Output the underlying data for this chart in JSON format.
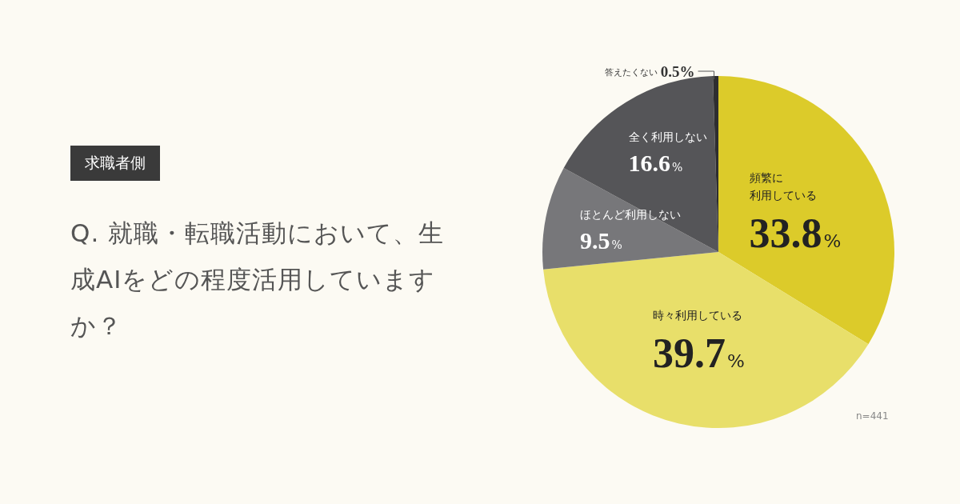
{
  "chart_data": {
    "type": "pie",
    "subtitle": "求職者側",
    "title": "Q. 就職・転職活動において、生成AIをどの程度活用していますか？",
    "categories": [
      "頻繁に利用している",
      "時々利用している",
      "ほとんど利用しない",
      "全く利用しない",
      "答えたくない"
    ],
    "values": [
      33.8,
      39.7,
      9.5,
      16.6,
      0.5
    ],
    "value_labels": [
      "33.8%",
      "39.7%",
      "9.5%",
      "16.6%",
      "0.5%"
    ],
    "colors": [
      "#dccb2a",
      "#e8df6a",
      "#77777a",
      "#555558",
      "#2e2e30"
    ],
    "legend": false,
    "annotations": [
      "n=441"
    ]
  }
}
